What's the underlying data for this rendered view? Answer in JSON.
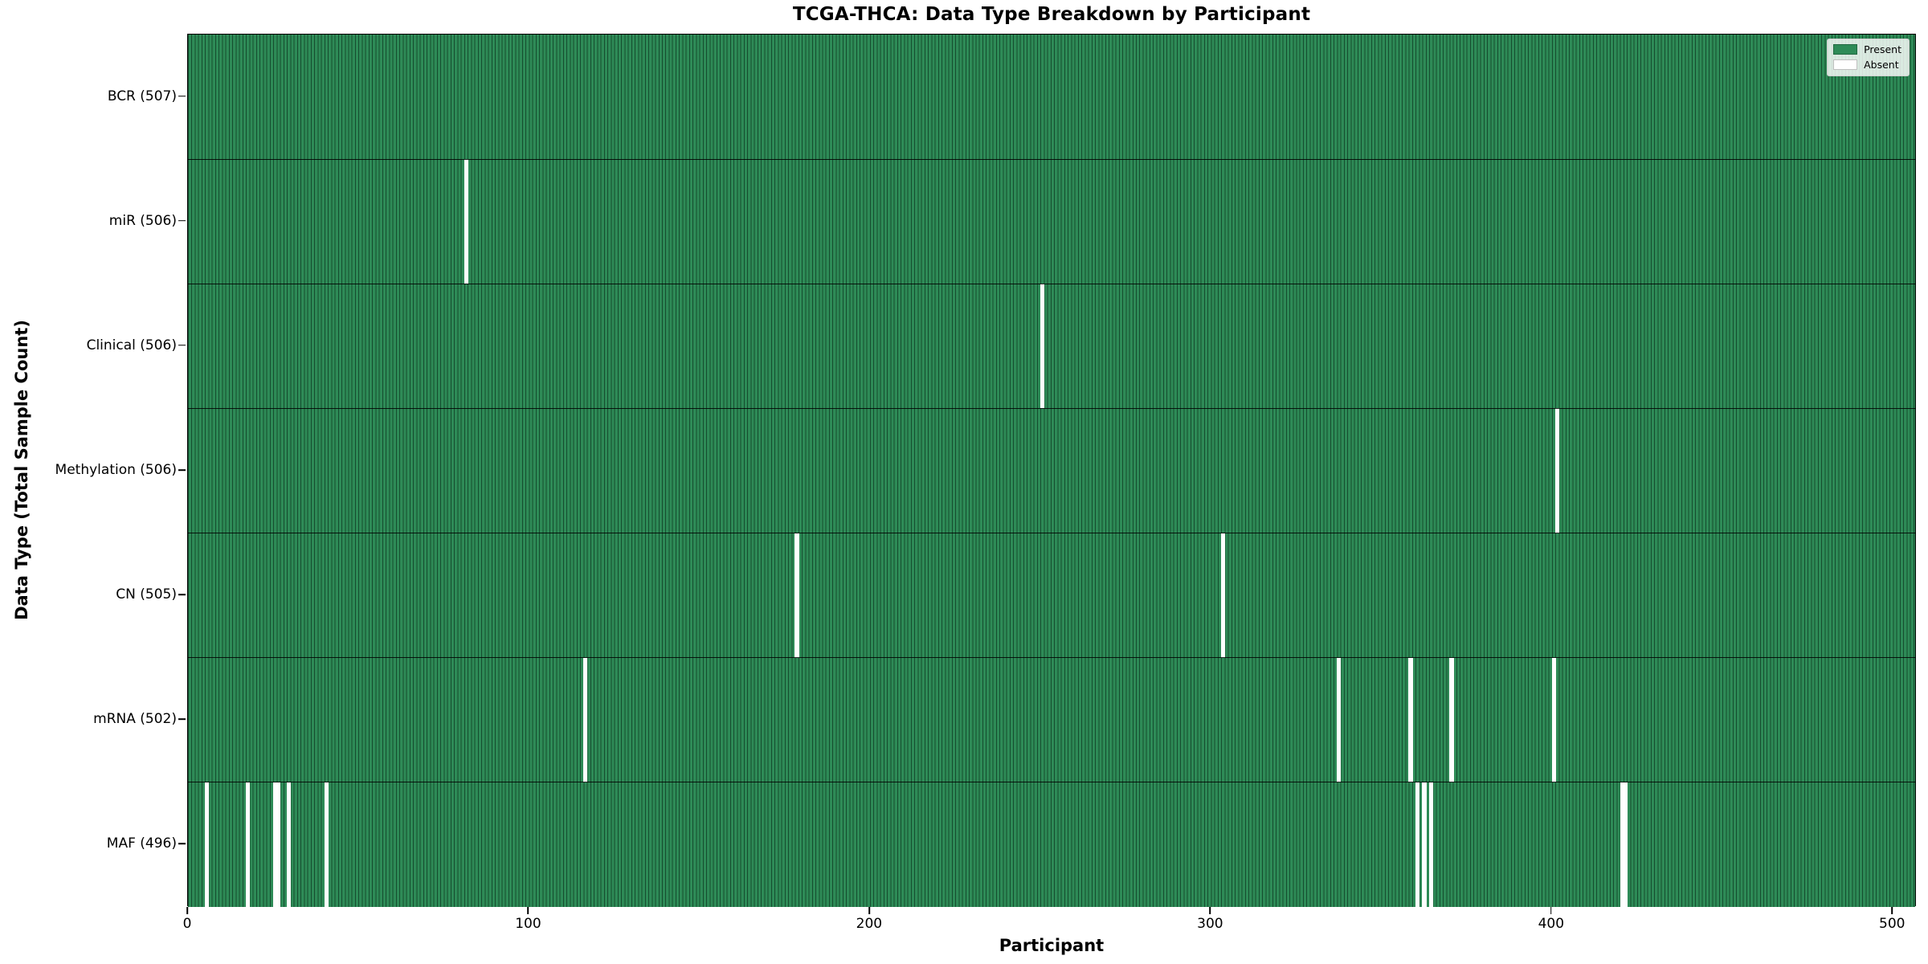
{
  "chart_data": {
    "type": "heatmap",
    "title": "TCGA-THCA: Data Type Breakdown by Participant",
    "xlabel": "Participant",
    "ylabel": "Data Type (Total Sample Count)",
    "x_ticks": [
      0,
      100,
      200,
      300,
      400,
      500
    ],
    "x_range": [
      0,
      507
    ],
    "n_participants": 507,
    "grid": false,
    "legend_position": "upper right",
    "legend": [
      {
        "label": "Present",
        "color": "#2e8b57"
      },
      {
        "label": "Absent",
        "color": "#ffffff"
      }
    ],
    "colors": {
      "present": "#2e8b57",
      "absent": "#ffffff"
    },
    "rows": [
      {
        "label": "BCR (507)",
        "data_type": "BCR",
        "total": 507,
        "absent_participants": []
      },
      {
        "label": "miR (506)",
        "data_type": "miR",
        "total": 506,
        "absent_participants": [
          81
        ]
      },
      {
        "label": "Clinical (506)",
        "data_type": "Clinical",
        "total": 506,
        "absent_participants": [
          250
        ]
      },
      {
        "label": "Methylation (506)",
        "data_type": "Methylation",
        "total": 506,
        "absent_participants": [
          401
        ]
      },
      {
        "label": "CN (505)",
        "data_type": "CN",
        "total": 505,
        "absent_participants": [
          178,
          303
        ]
      },
      {
        "label": "mRNA (502)",
        "data_type": "mRNA",
        "total": 502,
        "absent_participants": [
          116,
          337,
          358,
          370,
          400
        ]
      },
      {
        "label": "MAF (496)",
        "data_type": "MAF",
        "total": 496,
        "absent_participants": [
          5,
          17,
          25,
          26,
          29,
          40,
          360,
          362,
          364,
          420,
          421
        ]
      }
    ]
  }
}
